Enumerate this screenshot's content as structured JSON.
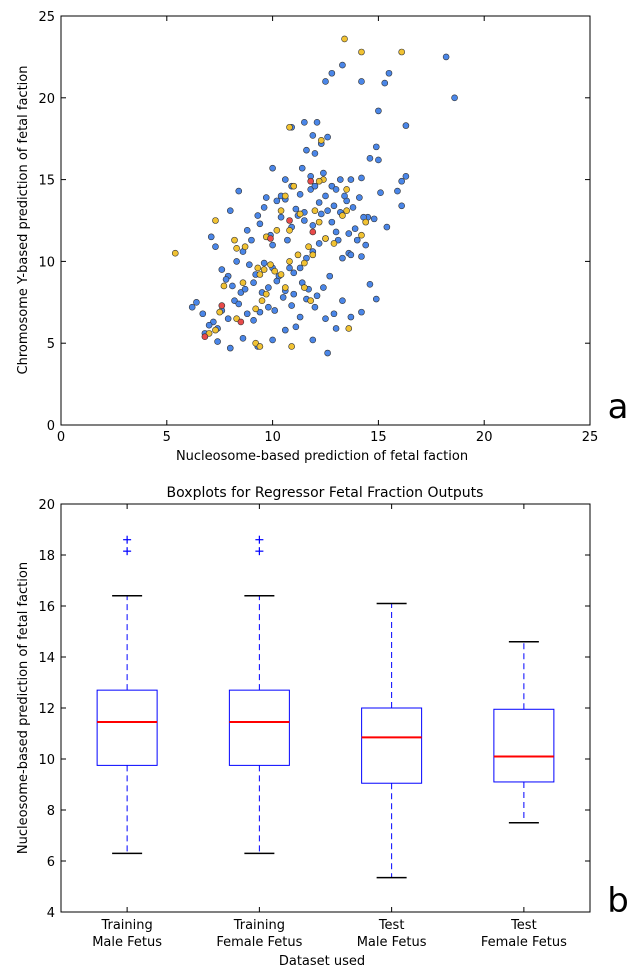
{
  "chart_data": [
    {
      "type": "scatter",
      "panel_label": "a",
      "xlabel": "Nucleosome-based prediction of fetal faction",
      "ylabel": "Chromosome Y-based prediction of fetal faction",
      "xlim": [
        0,
        25
      ],
      "ylim": [
        0,
        25
      ],
      "xticks": [
        "0",
        "5",
        "10",
        "15",
        "20",
        "25"
      ],
      "yticks": [
        "0",
        "5",
        "10",
        "15",
        "20",
        "25"
      ],
      "colors": {
        "blue": "#4a86e8",
        "yellow": "#f1c232",
        "red": "#e84a4a"
      },
      "series": [
        {
          "color": "blue",
          "points": [
            [
              8.0,
              13.1
            ],
            [
              8.4,
              14.3
            ],
            [
              9.4,
              12.3
            ],
            [
              9.7,
              13.9
            ],
            [
              10.2,
              13.7
            ],
            [
              10.6,
              13.8
            ],
            [
              10.4,
              14.0
            ],
            [
              9.9,
              11.6
            ],
            [
              10.0,
              11.0
            ],
            [
              10.9,
              12.1
            ],
            [
              10.7,
              11.3
            ],
            [
              11.2,
              12.8
            ],
            [
              11.5,
              12.5
            ],
            [
              11.9,
              12.2
            ],
            [
              12.3,
              12.9
            ],
            [
              12.6,
              13.1
            ],
            [
              12.9,
              13.4
            ],
            [
              13.2,
              13.0
            ],
            [
              13.5,
              13.7
            ],
            [
              13.8,
              13.3
            ],
            [
              14.1,
              13.9
            ],
            [
              14.5,
              12.7
            ],
            [
              14.8,
              12.6
            ],
            [
              15.1,
              14.2
            ],
            [
              15.4,
              12.1
            ],
            [
              15.9,
              14.3
            ],
            [
              16.1,
              14.9
            ],
            [
              16.3,
              15.2
            ],
            [
              16.1,
              13.4
            ],
            [
              14.4,
              11.0
            ],
            [
              14.2,
              10.3
            ],
            [
              13.6,
              10.5
            ],
            [
              13.3,
              10.2
            ],
            [
              13.0,
              11.8
            ],
            [
              12.5,
              11.4
            ],
            [
              12.2,
              11.1
            ],
            [
              11.9,
              10.6
            ],
            [
              11.6,
              10.2
            ],
            [
              11.3,
              9.6
            ],
            [
              11.0,
              9.3
            ],
            [
              10.8,
              9.6
            ],
            [
              10.3,
              9.1
            ],
            [
              10.0,
              9.6
            ],
            [
              9.6,
              9.9
            ],
            [
              9.2,
              9.2
            ],
            [
              8.9,
              9.8
            ],
            [
              8.6,
              10.6
            ],
            [
              8.3,
              10.0
            ],
            [
              7.9,
              9.1
            ],
            [
              7.6,
              9.5
            ],
            [
              7.3,
              10.9
            ],
            [
              7.1,
              11.5
            ],
            [
              6.4,
              7.5
            ],
            [
              6.2,
              7.2
            ],
            [
              6.7,
              6.8
            ],
            [
              7.2,
              6.3
            ],
            [
              7.6,
              7.0
            ],
            [
              7.9,
              6.5
            ],
            [
              8.2,
              7.6
            ],
            [
              8.5,
              8.1
            ],
            [
              8.8,
              6.8
            ],
            [
              9.1,
              6.4
            ],
            [
              9.4,
              6.9
            ],
            [
              9.8,
              7.2
            ],
            [
              10.1,
              7.0
            ],
            [
              10.5,
              7.8
            ],
            [
              10.9,
              7.3
            ],
            [
              11.3,
              6.6
            ],
            [
              11.6,
              7.7
            ],
            [
              12.0,
              7.2
            ],
            [
              12.5,
              6.5
            ],
            [
              12.9,
              6.8
            ],
            [
              13.3,
              7.6
            ],
            [
              13.7,
              6.6
            ],
            [
              14.2,
              6.9
            ],
            [
              14.6,
              8.6
            ],
            [
              14.9,
              7.7
            ],
            [
              14.3,
              12.7
            ],
            [
              13.9,
              12.0
            ],
            [
              12.7,
              9.1
            ],
            [
              12.4,
              8.4
            ],
            [
              12.1,
              7.9
            ],
            [
              11.7,
              8.3
            ],
            [
              11.4,
              8.7
            ],
            [
              11.0,
              8.0
            ],
            [
              10.6,
              8.2
            ],
            [
              10.2,
              8.8
            ],
            [
              9.8,
              8.4
            ],
            [
              9.5,
              8.1
            ],
            [
              9.1,
              8.7
            ],
            [
              8.7,
              8.3
            ],
            [
              8.4,
              7.4
            ],
            [
              8.1,
              8.5
            ],
            [
              7.8,
              8.9
            ],
            [
              7.4,
              5.9
            ],
            [
              7.0,
              6.1
            ],
            [
              6.8,
              5.6
            ],
            [
              7.4,
              5.1
            ],
            [
              8.0,
              4.7
            ],
            [
              8.6,
              5.3
            ],
            [
              9.3,
              4.8
            ],
            [
              10.0,
              5.2
            ],
            [
              10.6,
              5.8
            ],
            [
              11.1,
              6.0
            ],
            [
              11.9,
              5.2
            ],
            [
              12.6,
              4.4
            ],
            [
              13.0,
              5.9
            ],
            [
              11.5,
              18.5
            ],
            [
              12.1,
              18.5
            ],
            [
              11.9,
              17.7
            ],
            [
              12.6,
              17.6
            ],
            [
              12.3,
              17.2
            ],
            [
              12.0,
              16.6
            ],
            [
              11.6,
              16.8
            ],
            [
              11.4,
              15.7
            ],
            [
              11.8,
              15.2
            ],
            [
              12.4,
              15.4
            ],
            [
              12.8,
              14.6
            ],
            [
              13.2,
              15.0
            ],
            [
              13.7,
              15.0
            ],
            [
              14.2,
              15.1
            ],
            [
              14.6,
              16.3
            ],
            [
              14.9,
              17.0
            ],
            [
              15.0,
              16.2
            ],
            [
              15.0,
              19.2
            ],
            [
              15.3,
              20.9
            ],
            [
              15.5,
              21.5
            ],
            [
              16.3,
              18.3
            ],
            [
              14.2,
              21.0
            ],
            [
              12.8,
              21.5
            ],
            [
              12.5,
              21.0
            ],
            [
              13.3,
              22.0
            ],
            [
              18.2,
              22.5
            ],
            [
              18.6,
              20.0
            ],
            [
              10.9,
              18.2
            ],
            [
              10.6,
              15.0
            ],
            [
              10.9,
              14.6
            ],
            [
              11.3,
              14.1
            ],
            [
              11.8,
              14.4
            ],
            [
              12.0,
              14.6
            ],
            [
              12.5,
              14.0
            ],
            [
              13.0,
              14.4
            ],
            [
              13.4,
              14.0
            ],
            [
              10.0,
              15.7
            ],
            [
              9.6,
              13.3
            ],
            [
              9.3,
              12.8
            ],
            [
              9.0,
              11.3
            ],
            [
              8.8,
              11.9
            ],
            [
              10.4,
              12.7
            ],
            [
              11.1,
              13.2
            ],
            [
              11.5,
              13.0
            ],
            [
              12.2,
              13.6
            ],
            [
              12.8,
              12.4
            ],
            [
              13.1,
              11.3
            ],
            [
              13.6,
              11.7
            ],
            [
              14.0,
              11.3
            ],
            [
              13.7,
              10.4
            ]
          ]
        },
        {
          "color": "yellow",
          "points": [
            [
              13.4,
              23.6
            ],
            [
              14.2,
              22.8
            ],
            [
              16.1,
              22.8
            ],
            [
              10.8,
              18.2
            ],
            [
              12.3,
              17.4
            ],
            [
              12.4,
              15.0
            ],
            [
              12.2,
              14.9
            ],
            [
              11.0,
              14.6
            ],
            [
              10.6,
              14.0
            ],
            [
              10.4,
              13.1
            ],
            [
              11.3,
              12.9
            ],
            [
              12.0,
              13.1
            ],
            [
              12.2,
              12.4
            ],
            [
              12.5,
              11.4
            ],
            [
              13.5,
              13.1
            ],
            [
              13.5,
              14.4
            ],
            [
              14.4,
              12.4
            ],
            [
              14.2,
              11.6
            ],
            [
              12.9,
              11.1
            ],
            [
              11.7,
              10.9
            ],
            [
              10.2,
              11.9
            ],
            [
              9.7,
              11.5
            ],
            [
              9.9,
              9.8
            ],
            [
              9.6,
              9.5
            ],
            [
              9.4,
              9.2
            ],
            [
              8.7,
              10.9
            ],
            [
              8.3,
              10.8
            ],
            [
              8.2,
              11.3
            ],
            [
              7.3,
              12.5
            ],
            [
              5.4,
              10.5
            ],
            [
              7.7,
              8.5
            ],
            [
              8.6,
              8.7
            ],
            [
              9.3,
              9.6
            ],
            [
              10.1,
              9.4
            ],
            [
              10.4,
              9.2
            ],
            [
              10.8,
              10.0
            ],
            [
              11.2,
              10.4
            ],
            [
              11.5,
              8.4
            ],
            [
              10.6,
              8.4
            ],
            [
              9.7,
              8.0
            ],
            [
              9.5,
              7.6
            ],
            [
              9.2,
              7.1
            ],
            [
              8.3,
              6.5
            ],
            [
              7.5,
              6.9
            ],
            [
              7.3,
              5.8
            ],
            [
              7.0,
              5.6
            ],
            [
              9.2,
              5.0
            ],
            [
              9.4,
              4.8
            ],
            [
              10.9,
              4.8
            ],
            [
              11.8,
              7.6
            ],
            [
              13.6,
              5.9
            ],
            [
              11.9,
              10.4
            ],
            [
              11.5,
              9.9
            ],
            [
              10.8,
              11.9
            ],
            [
              13.3,
              12.8
            ]
          ]
        },
        {
          "color": "red",
          "points": [
            [
              11.8,
              14.9
            ],
            [
              10.8,
              12.5
            ],
            [
              9.9,
              11.4
            ],
            [
              11.9,
              11.8
            ],
            [
              7.6,
              7.3
            ],
            [
              6.8,
              5.4
            ],
            [
              8.5,
              6.3
            ]
          ]
        }
      ]
    },
    {
      "type": "boxplot",
      "panel_label": "b",
      "title": "Boxplots for Regressor Fetal Fraction Outputs",
      "xlabel": "Dataset used",
      "ylabel": "Nucleosome-based prediction of fetal faction",
      "ylim": [
        4,
        20
      ],
      "yticks": [
        "4",
        "6",
        "8",
        "10",
        "12",
        "14",
        "16",
        "18",
        "20"
      ],
      "colors": {
        "box": "#0000ff",
        "median": "#ff0000",
        "cap": "#000000",
        "flier": "#0000ff"
      },
      "categories": [
        {
          "line1": "Training",
          "line2": "Male Fetus"
        },
        {
          "line1": "Training",
          "line2": "Female Fetus"
        },
        {
          "line1": "Test",
          "line2": "Male Fetus"
        },
        {
          "line1": "Test",
          "line2": "Female Fetus"
        }
      ],
      "boxes": [
        {
          "whislo": 6.3,
          "q1": 9.75,
          "med": 11.45,
          "q3": 12.7,
          "whishi": 16.4,
          "fliers": [
            18.15,
            18.6
          ]
        },
        {
          "whislo": 6.3,
          "q1": 9.75,
          "med": 11.45,
          "q3": 12.7,
          "whishi": 16.4,
          "fliers": [
            18.15,
            18.6
          ]
        },
        {
          "whislo": 5.35,
          "q1": 9.05,
          "med": 10.85,
          "q3": 12.0,
          "whishi": 16.1,
          "fliers": []
        },
        {
          "whislo": 7.5,
          "q1": 9.1,
          "med": 10.1,
          "q3": 11.95,
          "whishi": 14.6,
          "fliers": []
        }
      ]
    }
  ]
}
